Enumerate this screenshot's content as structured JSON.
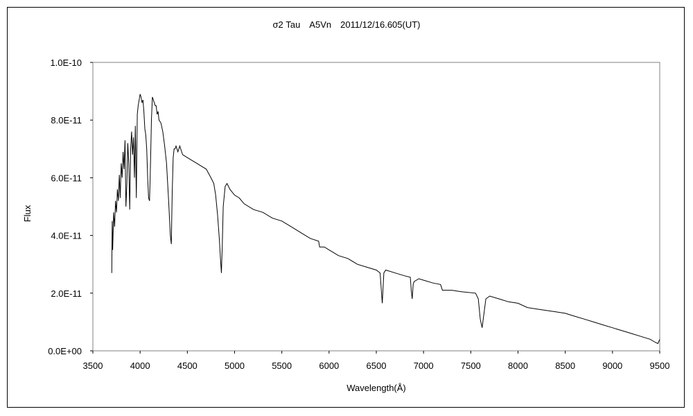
{
  "chart_data": {
    "type": "line",
    "title": "σ2 Tau　A5Vn　2011/12/16.605(UT)",
    "xlabel": "Wavelength(Å)",
    "ylabel": "Flux",
    "xlim": [
      3500,
      9500
    ],
    "ylim": [
      0,
      1e-10
    ],
    "x_ticks": [
      "3500",
      "4000",
      "4500",
      "5000",
      "5500",
      "6000",
      "6500",
      "7000",
      "7500",
      "8000",
      "8500",
      "9000",
      "9500"
    ],
    "y_ticks": [
      "0.0E+00",
      "2.0E-11",
      "4.0E-11",
      "6.0E-11",
      "8.0E-11",
      "1.0E-10"
    ],
    "grid": false,
    "legend": "none",
    "line_color": "#000000",
    "series": [
      {
        "x": [
          3700,
          3705,
          3710,
          3720,
          3730,
          3740,
          3750,
          3760,
          3770,
          3780,
          3790,
          3800,
          3810,
          3820,
          3830,
          3840,
          3850,
          3860,
          3870,
          3880,
          3890,
          3900,
          3910,
          3920,
          3930,
          3940,
          3950,
          3960,
          3970,
          3980,
          3990,
          4000,
          4010,
          4020,
          4030,
          4040,
          4050,
          4060,
          4070,
          4080,
          4090,
          4100,
          4110,
          4120,
          4130,
          4140,
          4150,
          4160,
          4170,
          4180,
          4190,
          4200,
          4220,
          4240,
          4260,
          4280,
          4300,
          4320,
          4330,
          4340,
          4350,
          4360,
          4370,
          4380,
          4400,
          4420,
          4450,
          4500,
          4550,
          4600,
          4650,
          4700,
          4750,
          4780,
          4800,
          4820,
          4840,
          4850,
          4861,
          4870,
          4880,
          4900,
          4920,
          4950,
          5000,
          5050,
          5100,
          5200,
          5300,
          5400,
          5500,
          5600,
          5700,
          5800,
          5890,
          5900,
          5950,
          6000,
          6100,
          6200,
          6300,
          6400,
          6500,
          6540,
          6563,
          6580,
          6600,
          6700,
          6800,
          6860,
          6870,
          6880,
          6890,
          6900,
          6950,
          7000,
          7100,
          7180,
          7200,
          7300,
          7400,
          7550,
          7580,
          7600,
          7620,
          7640,
          7660,
          7700,
          7800,
          7900,
          8000,
          8100,
          8200,
          8300,
          8400,
          8500,
          8600,
          8700,
          8800,
          8900,
          9000,
          9100,
          9200,
          9300,
          9400,
          9450,
          9480,
          9500
        ],
        "y": [
          2.7e-11,
          4.5e-11,
          3.5e-11,
          4.8e-11,
          4.3e-11,
          5.2e-11,
          4.8e-11,
          5.6e-11,
          5.2e-11,
          6.1e-11,
          5.3e-11,
          6.5e-11,
          6e-11,
          6.9e-11,
          6.3e-11,
          7.3e-11,
          5e-11,
          5.8e-11,
          7.2e-11,
          6.5e-11,
          4.9e-11,
          7e-11,
          7.6e-11,
          6.8e-11,
          7.4e-11,
          6e-11,
          7.8e-11,
          5.3e-11,
          8.2e-11,
          8.5e-11,
          8.7e-11,
          8.9e-11,
          8.8e-11,
          8.6e-11,
          8.7e-11,
          8.3e-11,
          7.7e-11,
          7.5e-11,
          7e-11,
          6e-11,
          5.3e-11,
          5.2e-11,
          6.5e-11,
          8e-11,
          8.8e-11,
          8.7e-11,
          8.6e-11,
          8.5e-11,
          8.5e-11,
          8.2e-11,
          8.3e-11,
          8e-11,
          7.9e-11,
          7.6e-11,
          7.1e-11,
          6.5e-11,
          5.3e-11,
          4e-11,
          3.7e-11,
          5.5e-11,
          6.7e-11,
          7e-11,
          7e-11,
          7.1e-11,
          6.9e-11,
          7.1e-11,
          6.8e-11,
          6.7e-11,
          6.6e-11,
          6.5e-11,
          6.4e-11,
          6.3e-11,
          6e-11,
          5.8e-11,
          5.4e-11,
          4.7e-11,
          3.8e-11,
          3.2e-11,
          2.7e-11,
          3.7e-11,
          5e-11,
          5.7e-11,
          5.8e-11,
          5.6e-11,
          5.4e-11,
          5.3e-11,
          5.1e-11,
          4.9e-11,
          4.8e-11,
          4.6e-11,
          4.5e-11,
          4.3e-11,
          4.1e-11,
          3.9e-11,
          3.8e-11,
          3.6e-11,
          3.6e-11,
          3.5e-11,
          3.3e-11,
          3.2e-11,
          3e-11,
          2.9e-11,
          2.8e-11,
          2.7e-11,
          1.65e-11,
          2.7e-11,
          2.8e-11,
          2.7e-11,
          2.6e-11,
          2.55e-11,
          2.1e-11,
          1.8e-11,
          2.3e-11,
          2.4e-11,
          2.5e-11,
          2.45e-11,
          2.35e-11,
          2.3e-11,
          2.1e-11,
          2.1e-11,
          2.05e-11,
          2e-11,
          1.8e-11,
          1.1e-11,
          8e-12,
          1.3e-11,
          1.8e-11,
          1.9e-11,
          1.8e-11,
          1.7e-11,
          1.65e-11,
          1.5e-11,
          1.45e-11,
          1.4e-11,
          1.35e-11,
          1.3e-11,
          1.2e-11,
          1.1e-11,
          1e-11,
          9e-12,
          8e-12,
          7e-12,
          6e-12,
          5e-12,
          4e-12,
          3e-12,
          2.5e-12,
          4e-12
        ]
      }
    ]
  }
}
